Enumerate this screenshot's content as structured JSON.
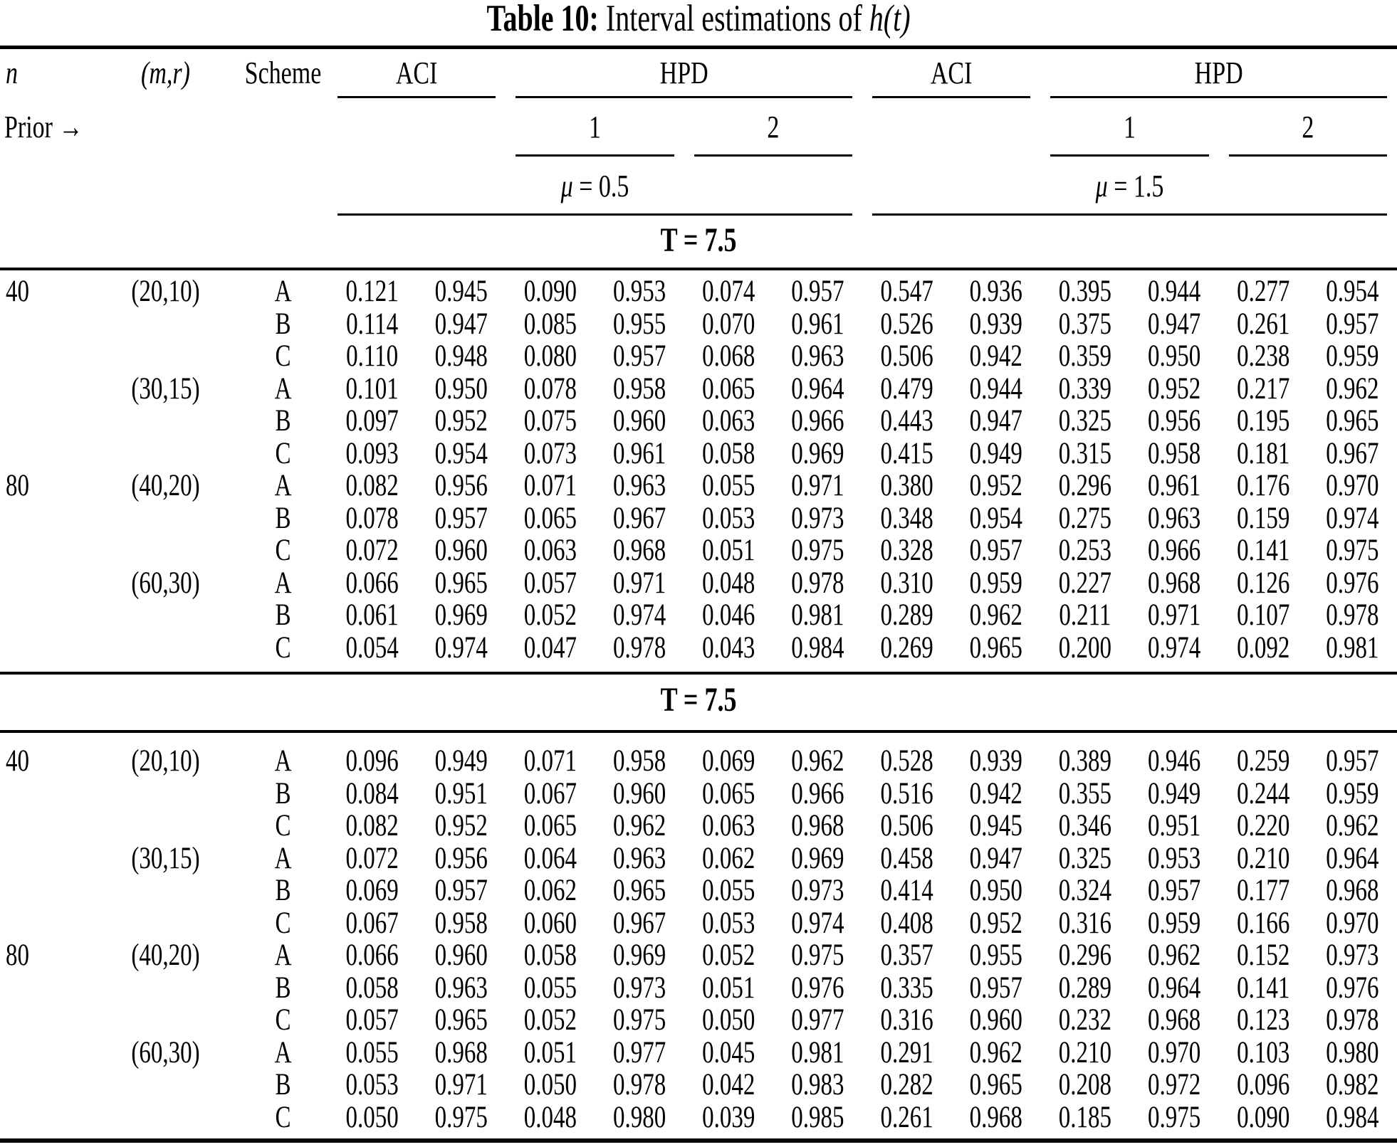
{
  "title": {
    "prefix": "Table 10:",
    "rest": "Interval estimations of",
    "math": "h(t)"
  },
  "header": {
    "n": "n",
    "mr": "(m,r)",
    "scheme": "Scheme",
    "aci1": "ACI",
    "hpd1": "HPD",
    "aci2": "ACI",
    "hpd2": "HPD",
    "prior": "Prior →",
    "prior1a": "1",
    "prior2a": "2",
    "prior1b": "1",
    "prior2b": "2",
    "mu1_sym": "μ",
    "mu1_eq": "= 0.5",
    "mu2_sym": "μ",
    "mu2_eq": "= 1.5"
  },
  "colors": {
    "text": "#000000",
    "background": "#ffffff",
    "rule": "#000000"
  },
  "sections": [
    {
      "band": "T = 7.5",
      "rows": [
        {
          "n": "40",
          "mr": "(20,10)",
          "scheme": "A",
          "values": [
            "0.121",
            "0.945",
            "0.090",
            "0.953",
            "0.074",
            "0.957",
            "0.547",
            "0.936",
            "0.395",
            "0.944",
            "0.277",
            "0.954"
          ]
        },
        {
          "n": "",
          "mr": "",
          "scheme": "B",
          "values": [
            "0.114",
            "0.947",
            "0.085",
            "0.955",
            "0.070",
            "0.961",
            "0.526",
            "0.939",
            "0.375",
            "0.947",
            "0.261",
            "0.957"
          ]
        },
        {
          "n": "",
          "mr": "",
          "scheme": "C",
          "values": [
            "0.110",
            "0.948",
            "0.080",
            "0.957",
            "0.068",
            "0.963",
            "0.506",
            "0.942",
            "0.359",
            "0.950",
            "0.238",
            "0.959"
          ]
        },
        {
          "n": "",
          "mr": "(30,15)",
          "scheme": "A",
          "values": [
            "0.101",
            "0.950",
            "0.078",
            "0.958",
            "0.065",
            "0.964",
            "0.479",
            "0.944",
            "0.339",
            "0.952",
            "0.217",
            "0.962"
          ]
        },
        {
          "n": "",
          "mr": "",
          "scheme": "B",
          "values": [
            "0.097",
            "0.952",
            "0.075",
            "0.960",
            "0.063",
            "0.966",
            "0.443",
            "0.947",
            "0.325",
            "0.956",
            "0.195",
            "0.965"
          ]
        },
        {
          "n": "",
          "mr": "",
          "scheme": "C",
          "values": [
            "0.093",
            "0.954",
            "0.073",
            "0.961",
            "0.058",
            "0.969",
            "0.415",
            "0.949",
            "0.315",
            "0.958",
            "0.181",
            "0.967"
          ]
        },
        {
          "n": "80",
          "mr": "(40,20)",
          "scheme": "A",
          "values": [
            "0.082",
            "0.956",
            "0.071",
            "0.963",
            "0.055",
            "0.971",
            "0.380",
            "0.952",
            "0.296",
            "0.961",
            "0.176",
            "0.970"
          ]
        },
        {
          "n": "",
          "mr": "",
          "scheme": "B",
          "values": [
            "0.078",
            "0.957",
            "0.065",
            "0.967",
            "0.053",
            "0.973",
            "0.348",
            "0.954",
            "0.275",
            "0.963",
            "0.159",
            "0.974"
          ]
        },
        {
          "n": "",
          "mr": "",
          "scheme": "C",
          "values": [
            "0.072",
            "0.960",
            "0.063",
            "0.968",
            "0.051",
            "0.975",
            "0.328",
            "0.957",
            "0.253",
            "0.966",
            "0.141",
            "0.975"
          ]
        },
        {
          "n": "",
          "mr": "(60,30)",
          "scheme": "A",
          "values": [
            "0.066",
            "0.965",
            "0.057",
            "0.971",
            "0.048",
            "0.978",
            "0.310",
            "0.959",
            "0.227",
            "0.968",
            "0.126",
            "0.976"
          ]
        },
        {
          "n": "",
          "mr": "",
          "scheme": "B",
          "values": [
            "0.061",
            "0.969",
            "0.052",
            "0.974",
            "0.046",
            "0.981",
            "0.289",
            "0.962",
            "0.211",
            "0.971",
            "0.107",
            "0.978"
          ]
        },
        {
          "n": "",
          "mr": "",
          "scheme": "C",
          "values": [
            "0.054",
            "0.974",
            "0.047",
            "0.978",
            "0.043",
            "0.984",
            "0.269",
            "0.965",
            "0.200",
            "0.974",
            "0.092",
            "0.981"
          ]
        }
      ]
    },
    {
      "band": "T = 7.5",
      "rows": [
        {
          "n": "40",
          "mr": "(20,10)",
          "scheme": "A",
          "values": [
            "0.096",
            "0.949",
            "0.071",
            "0.958",
            "0.069",
            "0.962",
            "0.528",
            "0.939",
            "0.389",
            "0.946",
            "0.259",
            "0.957"
          ]
        },
        {
          "n": "",
          "mr": "",
          "scheme": "B",
          "values": [
            "0.084",
            "0.951",
            "0.067",
            "0.960",
            "0.065",
            "0.966",
            "0.516",
            "0.942",
            "0.355",
            "0.949",
            "0.244",
            "0.959"
          ]
        },
        {
          "n": "",
          "mr": "",
          "scheme": "C",
          "values": [
            "0.082",
            "0.952",
            "0.065",
            "0.962",
            "0.063",
            "0.968",
            "0.506",
            "0.945",
            "0.346",
            "0.951",
            "0.220",
            "0.962"
          ]
        },
        {
          "n": "",
          "mr": "(30,15)",
          "scheme": "A",
          "values": [
            "0.072",
            "0.956",
            "0.064",
            "0.963",
            "0.062",
            "0.969",
            "0.458",
            "0.947",
            "0.325",
            "0.953",
            "0.210",
            "0.964"
          ]
        },
        {
          "n": "",
          "mr": "",
          "scheme": "B",
          "values": [
            "0.069",
            "0.957",
            "0.062",
            "0.965",
            "0.055",
            "0.973",
            "0.414",
            "0.950",
            "0.324",
            "0.957",
            "0.177",
            "0.968"
          ]
        },
        {
          "n": "",
          "mr": "",
          "scheme": "C",
          "values": [
            "0.067",
            "0.958",
            "0.060",
            "0.967",
            "0.053",
            "0.974",
            "0.408",
            "0.952",
            "0.316",
            "0.959",
            "0.166",
            "0.970"
          ]
        },
        {
          "n": "80",
          "mr": "(40,20)",
          "scheme": "A",
          "values": [
            "0.066",
            "0.960",
            "0.058",
            "0.969",
            "0.052",
            "0.975",
            "0.357",
            "0.955",
            "0.296",
            "0.962",
            "0.152",
            "0.973"
          ]
        },
        {
          "n": "",
          "mr": "",
          "scheme": "B",
          "values": [
            "0.058",
            "0.963",
            "0.055",
            "0.973",
            "0.051",
            "0.976",
            "0.335",
            "0.957",
            "0.289",
            "0.964",
            "0.141",
            "0.976"
          ]
        },
        {
          "n": "",
          "mr": "",
          "scheme": "C",
          "values": [
            "0.057",
            "0.965",
            "0.052",
            "0.975",
            "0.050",
            "0.977",
            "0.316",
            "0.960",
            "0.232",
            "0.968",
            "0.123",
            "0.978"
          ]
        },
        {
          "n": "",
          "mr": "(60,30)",
          "scheme": "A",
          "values": [
            "0.055",
            "0.968",
            "0.051",
            "0.977",
            "0.045",
            "0.981",
            "0.291",
            "0.962",
            "0.210",
            "0.970",
            "0.103",
            "0.980"
          ]
        },
        {
          "n": "",
          "mr": "",
          "scheme": "B",
          "values": [
            "0.053",
            "0.971",
            "0.050",
            "0.978",
            "0.042",
            "0.983",
            "0.282",
            "0.965",
            "0.208",
            "0.972",
            "0.096",
            "0.982"
          ]
        },
        {
          "n": "",
          "mr": "",
          "scheme": "C",
          "values": [
            "0.050",
            "0.975",
            "0.048",
            "0.980",
            "0.039",
            "0.985",
            "0.261",
            "0.968",
            "0.185",
            "0.975",
            "0.090",
            "0.984"
          ]
        }
      ]
    }
  ]
}
